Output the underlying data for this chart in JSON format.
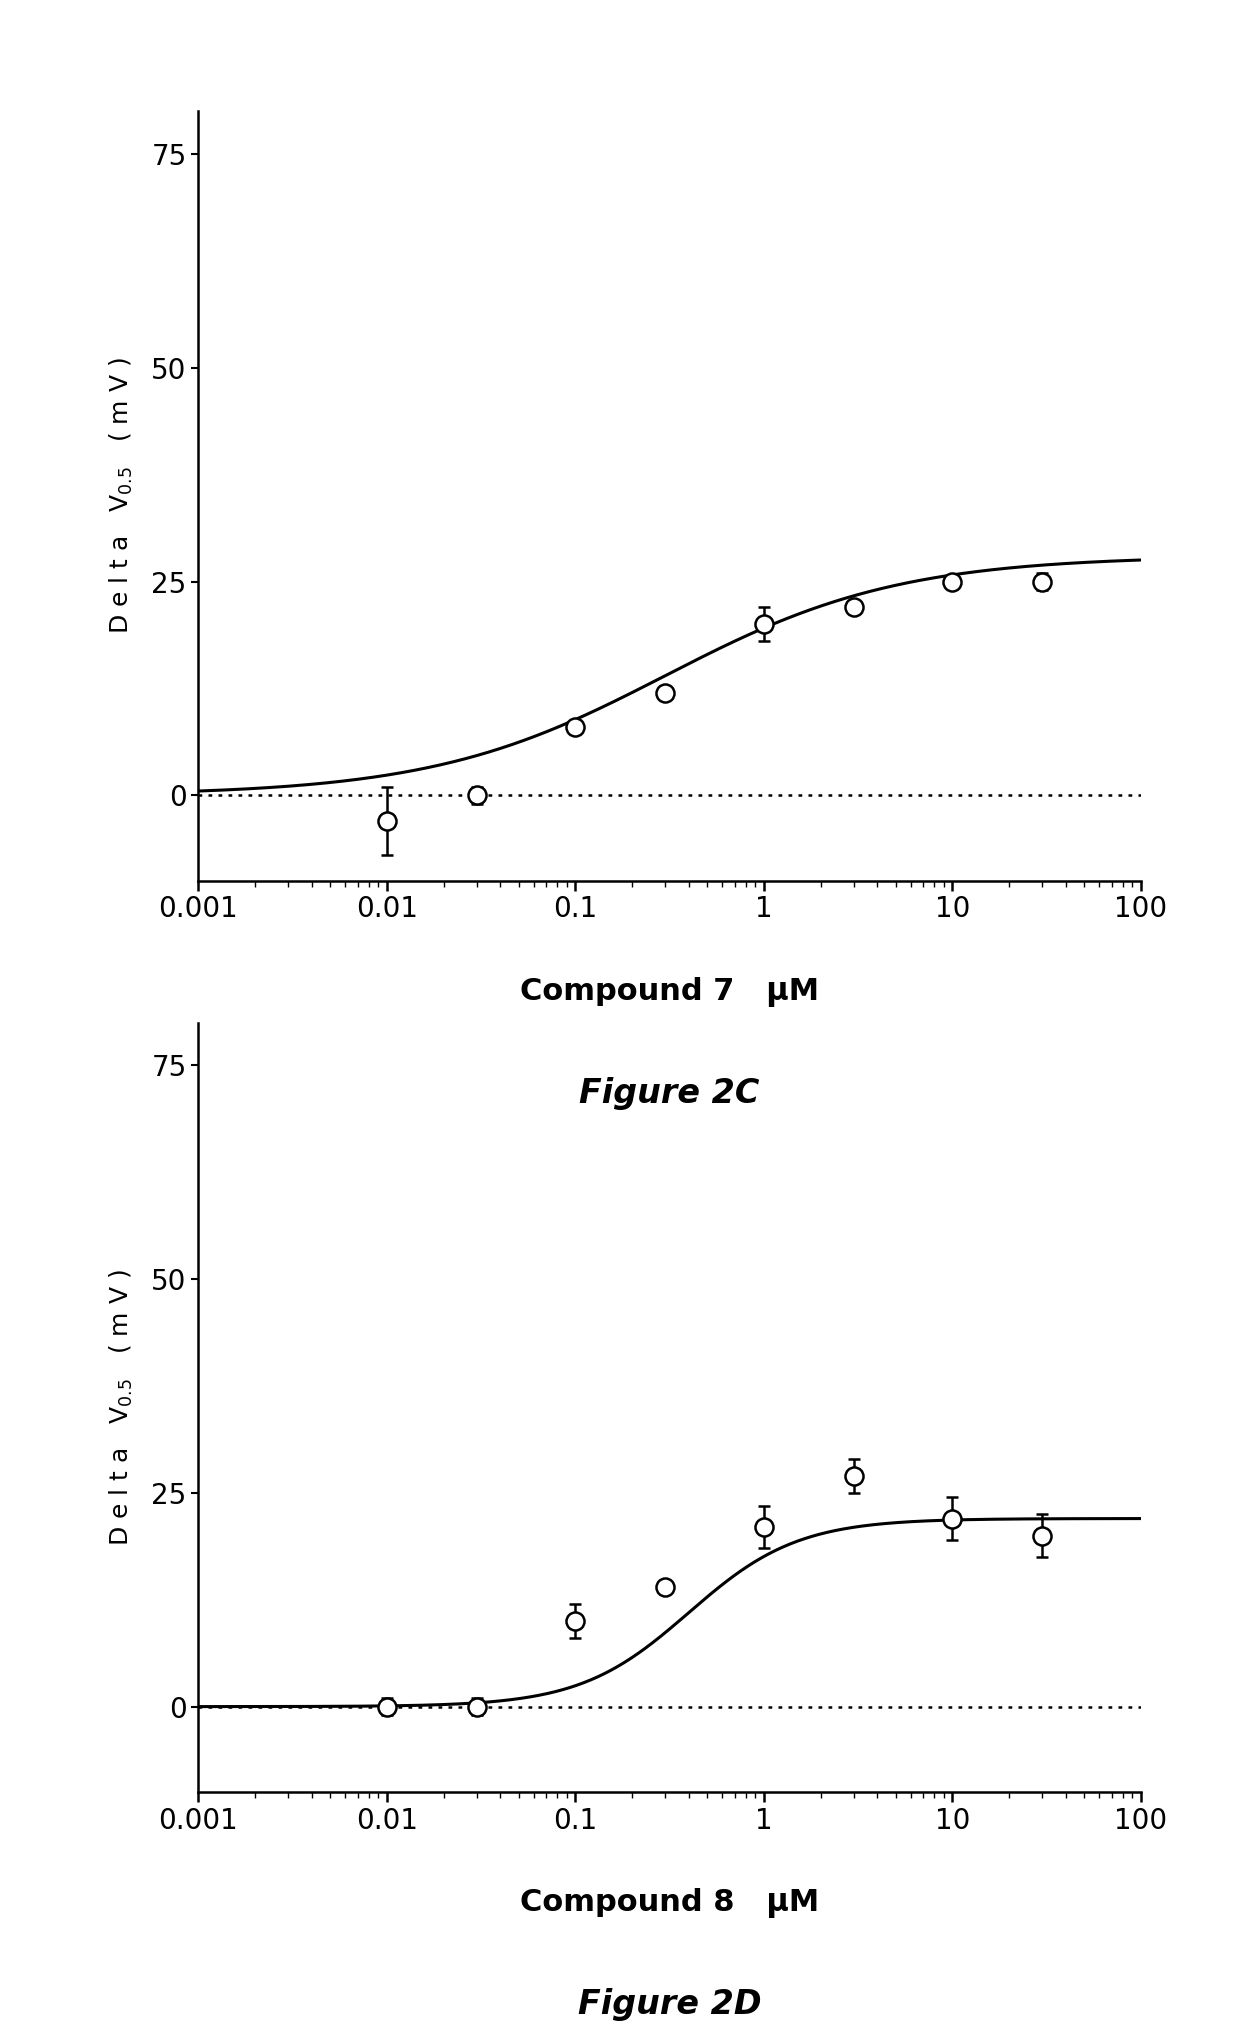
{
  "fig2c": {
    "x": [
      0.01,
      0.03,
      0.1,
      0.3,
      1.0,
      3.0,
      10.0,
      30.0
    ],
    "y": [
      -3.0,
      0.0,
      8.0,
      12.0,
      20.0,
      22.0,
      25.0,
      25.0
    ],
    "yerr": [
      4.0,
      1.0,
      0.0,
      0.0,
      2.0,
      0.0,
      0.5,
      1.0
    ],
    "hill_max": 28.0,
    "hill_ec50": 0.3,
    "hill_n": 0.7,
    "xlabel": "Compound 7   μM",
    "figure_label": "Figure 2C",
    "ylim": [
      -10,
      80
    ],
    "yticks": [
      0,
      25,
      50,
      75
    ]
  },
  "fig2d": {
    "x": [
      0.01,
      0.03,
      0.1,
      0.3,
      1.0,
      3.0,
      10.0,
      30.0
    ],
    "y": [
      0.0,
      0.0,
      10.0,
      14.0,
      21.0,
      27.0,
      22.0,
      20.0
    ],
    "yerr": [
      1.0,
      1.0,
      2.0,
      0.0,
      2.5,
      2.0,
      2.5,
      2.5
    ],
    "hill_max": 22.0,
    "hill_ec50": 0.4,
    "hill_n": 1.5,
    "xlabel": "Compound 8   μM",
    "figure_label": "Figure 2D",
    "ylim": [
      -10,
      80
    ],
    "yticks": [
      0,
      25,
      50,
      75
    ]
  },
  "xlim": [
    0.001,
    100
  ],
  "ylabel": "Delta V$_{0.5}$ (mV)",
  "background_color": "#ffffff",
  "line_color": "#000000",
  "marker_color": "#000000"
}
